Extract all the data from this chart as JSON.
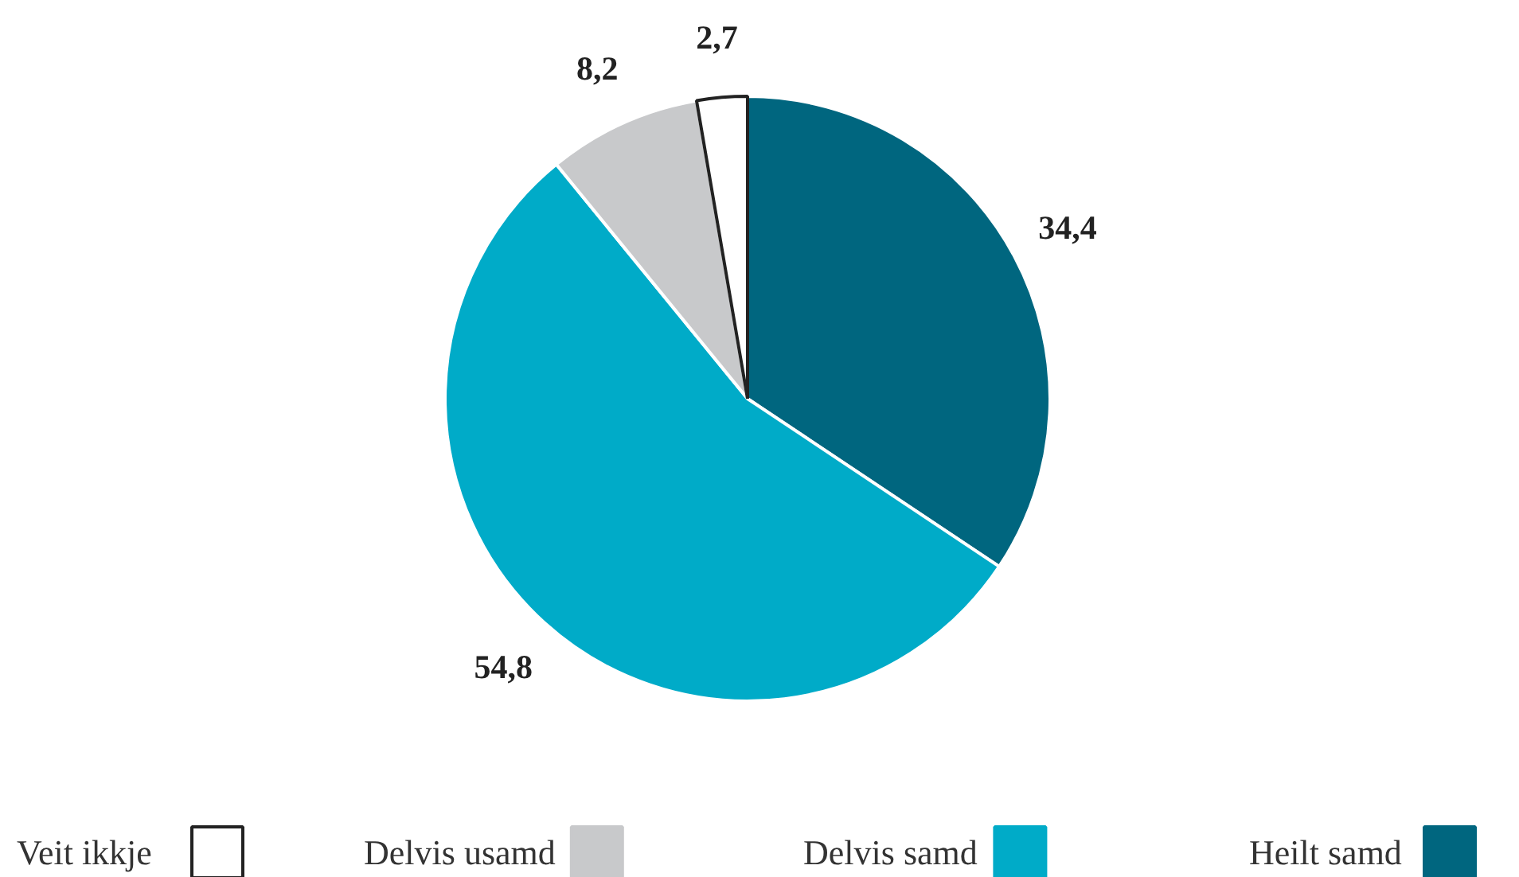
{
  "chart_data": {
    "type": "pie",
    "categories": [
      "Heilt samd",
      "Delvis samd",
      "Delvis usamd",
      "Veit ikkje"
    ],
    "values": [
      34.4,
      54.8,
      8.2,
      2.7
    ],
    "colors": [
      "#00667f",
      "#00abc8",
      "#c8c9cb",
      "#ffffff"
    ],
    "value_labels": [
      "34,4",
      "54,8",
      "8,2",
      "2,7"
    ],
    "legend": "bottom"
  }
}
